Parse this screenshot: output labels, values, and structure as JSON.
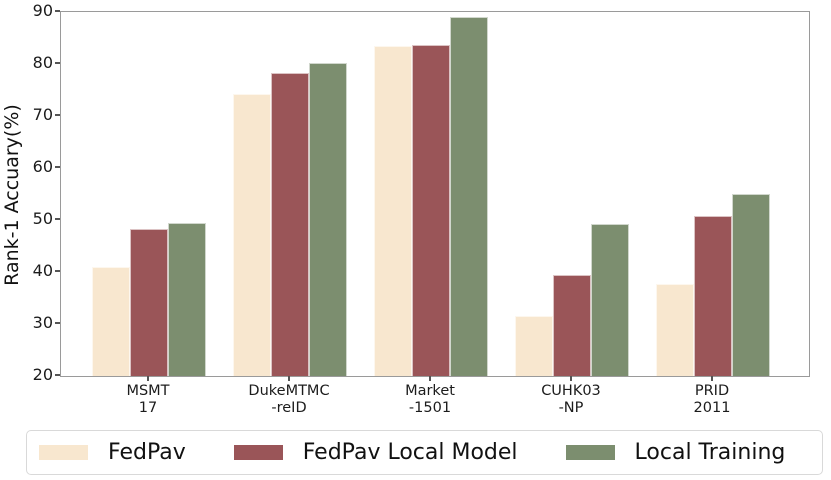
{
  "chart_data": {
    "type": "bar",
    "title": "",
    "xlabel": "",
    "ylabel": "Rank-1 Accuary(%)",
    "ylim": [
      20,
      90
    ],
    "yticks": [
      20,
      30,
      40,
      50,
      60,
      70,
      80,
      90
    ],
    "grid": false,
    "legend_position": "bottom",
    "categories": [
      [
        "MSMT",
        "17"
      ],
      [
        "DukeMTMC",
        "-reID"
      ],
      [
        "Market",
        "-1501"
      ],
      [
        "CUHK03",
        "-NP"
      ],
      [
        "PRID",
        "2011"
      ]
    ],
    "series": [
      {
        "name": "FedPav",
        "color": "#f8e7cf",
        "values": [
          41.0,
          74.3,
          83.4,
          31.5,
          37.7
        ]
      },
      {
        "name": "FedPav Local Model",
        "color": "#9a5558",
        "values": [
          48.2,
          78.2,
          83.7,
          39.4,
          50.7
        ]
      },
      {
        "name": "Local Training",
        "color": "#7c8e6f",
        "values": [
          49.5,
          80.1,
          89.0,
          49.3,
          55.0
        ]
      }
    ]
  },
  "colors": {
    "spine": "#9a9a9a",
    "tick": "#555555",
    "text": "#1c1c1c",
    "legend_border": "#d9d9d9"
  }
}
